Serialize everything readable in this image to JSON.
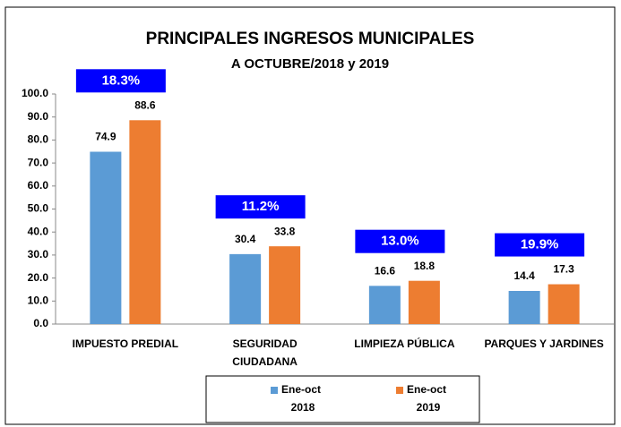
{
  "chart_data": {
    "type": "bar",
    "title": "PRINCIPALES INGRESOS MUNICIPALES",
    "subtitle": "A OCTUBRE/2018 y 2019",
    "categories": [
      "IMPUESTO PREDIAL",
      "SEGURIDAD CIUDADANA",
      "LIMPIEZA PÚBLICA",
      "PARQUES Y JARDINES"
    ],
    "series": [
      {
        "name": "Ene-oct 2018",
        "color": "#5b9bd5",
        "values": [
          74.9,
          30.4,
          16.6,
          14.4
        ]
      },
      {
        "name": "Ene-oct 2019",
        "color": "#ed7d31",
        "values": [
          88.6,
          33.8,
          18.8,
          17.3
        ]
      }
    ],
    "annotations": [
      "18.3%",
      "11.2%",
      "13.0%",
      "19.9%"
    ],
    "ylim": [
      0,
      100
    ],
    "yticks": [
      {
        "value": 0,
        "label": "0.0"
      },
      {
        "value": 10,
        "label": "10.0"
      },
      {
        "value": 20,
        "label": "20.0"
      },
      {
        "value": 30,
        "label": "30.0"
      },
      {
        "value": 40,
        "label": "40.0"
      },
      {
        "value": 50,
        "label": "50.0"
      },
      {
        "value": 60,
        "label": "60.0"
      },
      {
        "value": 70,
        "label": "70.0"
      },
      {
        "value": 80,
        "label": "80.0"
      },
      {
        "value": 90,
        "label": "90.0"
      },
      {
        "value": 100,
        "label": "100.0"
      }
    ],
    "annotation_color": "#0000ff",
    "legend": "bottom"
  }
}
